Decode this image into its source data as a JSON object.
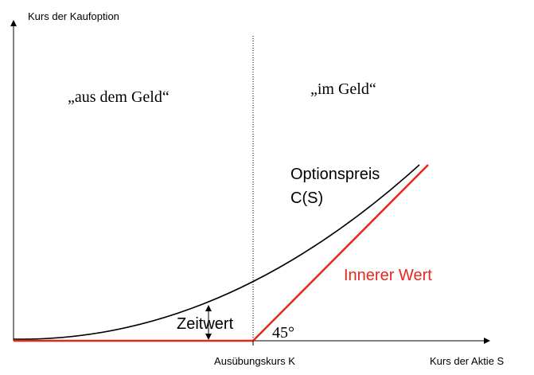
{
  "axes": {
    "y_label": "Kurs der Kaufoption",
    "x_label": "Kurs der Aktie S",
    "strike_label": "Ausübungskurs K"
  },
  "regions": {
    "out_of_money": "„aus dem Geld“",
    "in_money": "„im Geld“"
  },
  "curves": {
    "option_price_line1": "Optionspreis",
    "option_price_line2": "C(S)",
    "intrinsic_value": "Innerer Wert"
  },
  "annotations": {
    "time_value": "Zeitwert",
    "angle": "45°"
  }
}
